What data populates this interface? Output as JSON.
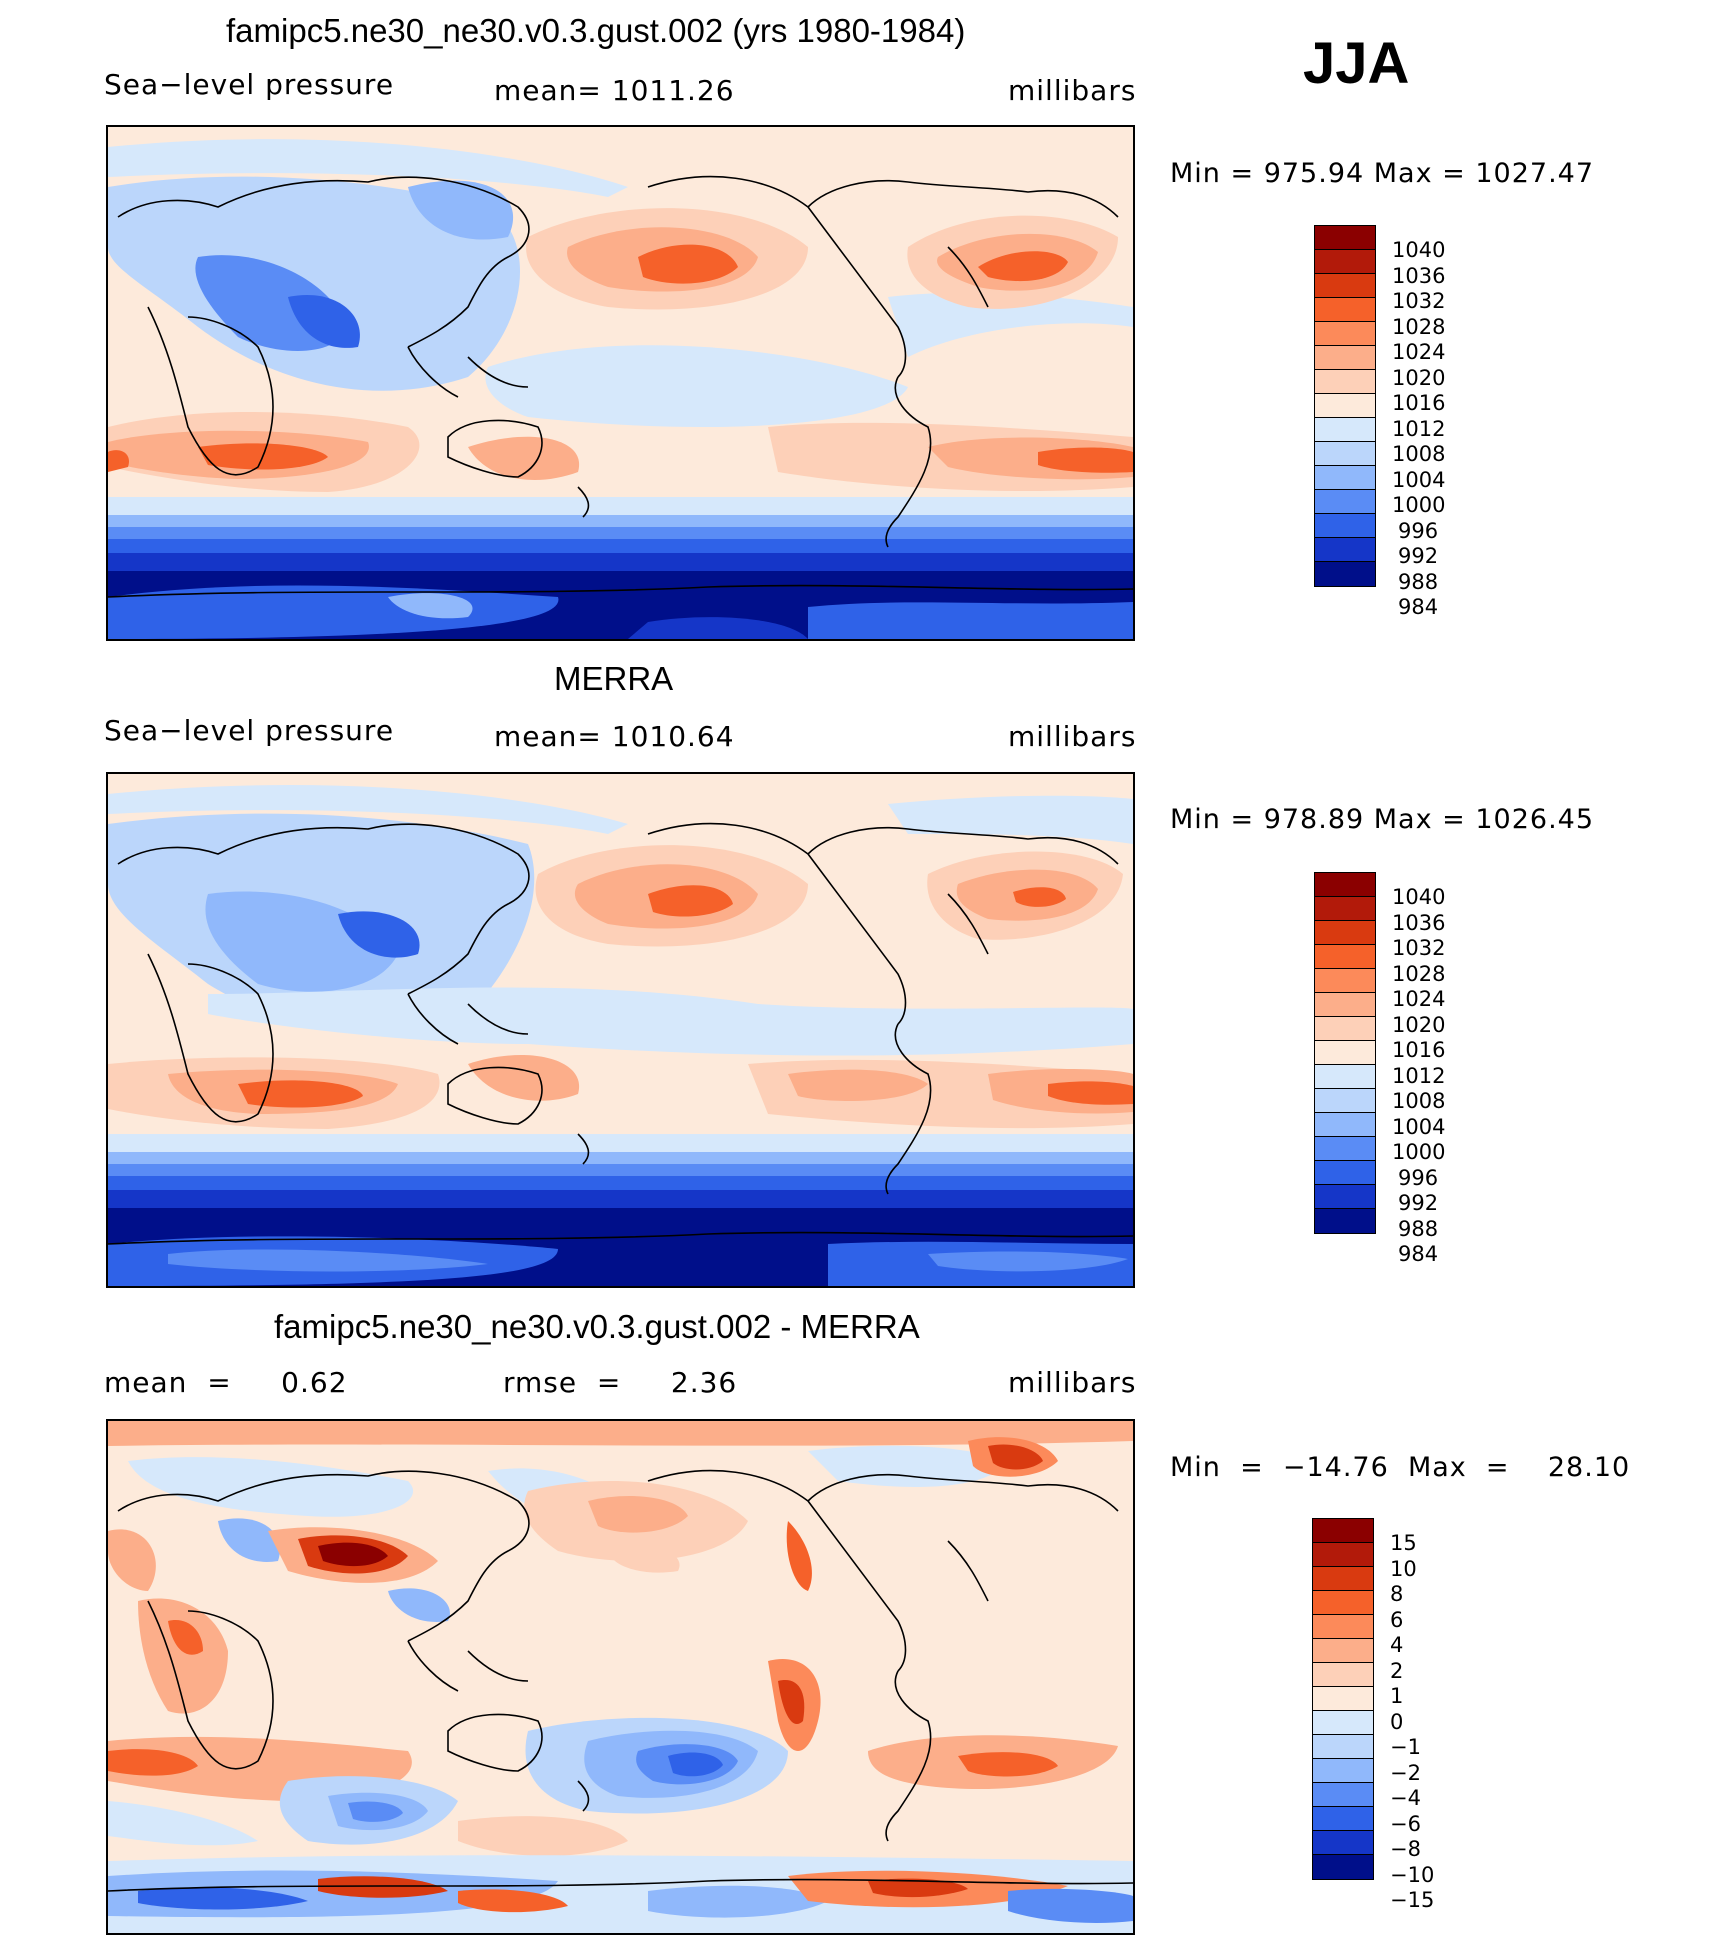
{
  "season": "JJA",
  "units": "millibars",
  "panels": [
    {
      "title": "famipc5.ne30_ne30.v0.3.gust.002 (yrs 1980-1984)",
      "variable": "Sea−level pressure",
      "stat": "mean=  1011.26",
      "units": "millibars",
      "minmax": "Min  =  975.94  Max  =  1027.47",
      "levels": [
        "1040",
        "1036",
        "1032",
        "1028",
        "1024",
        "1020",
        "1016",
        "1012",
        "1008",
        "1004",
        "1000",
        "996",
        "992",
        "988",
        "984"
      ]
    },
    {
      "title": "MERRA",
      "variable": "Sea−level pressure",
      "stat": "mean=  1010.64",
      "units": "millibars",
      "minmax": "Min  =  978.89  Max  =  1026.45",
      "levels": [
        "1040",
        "1036",
        "1032",
        "1028",
        "1024",
        "1020",
        "1016",
        "1012",
        "1008",
        "1004",
        "1000",
        "996",
        "992",
        "988",
        "984"
      ]
    },
    {
      "title": "famipc5.ne30_ne30.v0.3.gust.002 - MERRA",
      "stat_left": "mean  =     0.62",
      "stat_mid": "rmse  =     2.36",
      "units": "millibars",
      "minmax": "Min  =  −14.76  Max  =    28.10",
      "levels": [
        "15",
        "10",
        "8",
        "6",
        "4",
        "2",
        "1",
        "0",
        "−1",
        "−2",
        "−4",
        "−6",
        "−8",
        "−10",
        "−15"
      ]
    }
  ],
  "colors": {
    "absolute": [
      "#8b0000",
      "#b21a0a",
      "#d93a10",
      "#f5612a",
      "#fc8a5a",
      "#fcae8a",
      "#fdd0b8",
      "#fdeadb",
      "#d6e8fb",
      "#bbd6fb",
      "#90b8fb",
      "#5a8cf5",
      "#2f62e8",
      "#1536c8",
      "#000f8a"
    ],
    "difference": [
      "#8b0000",
      "#b21a0a",
      "#d93a10",
      "#f5612a",
      "#fc8a5a",
      "#fcae8a",
      "#fdd0b8",
      "#fdeadb",
      "#d6e8fb",
      "#bbd6fb",
      "#90b8fb",
      "#5a8cf5",
      "#2f62e8",
      "#1536c8",
      "#000f8a"
    ]
  }
}
